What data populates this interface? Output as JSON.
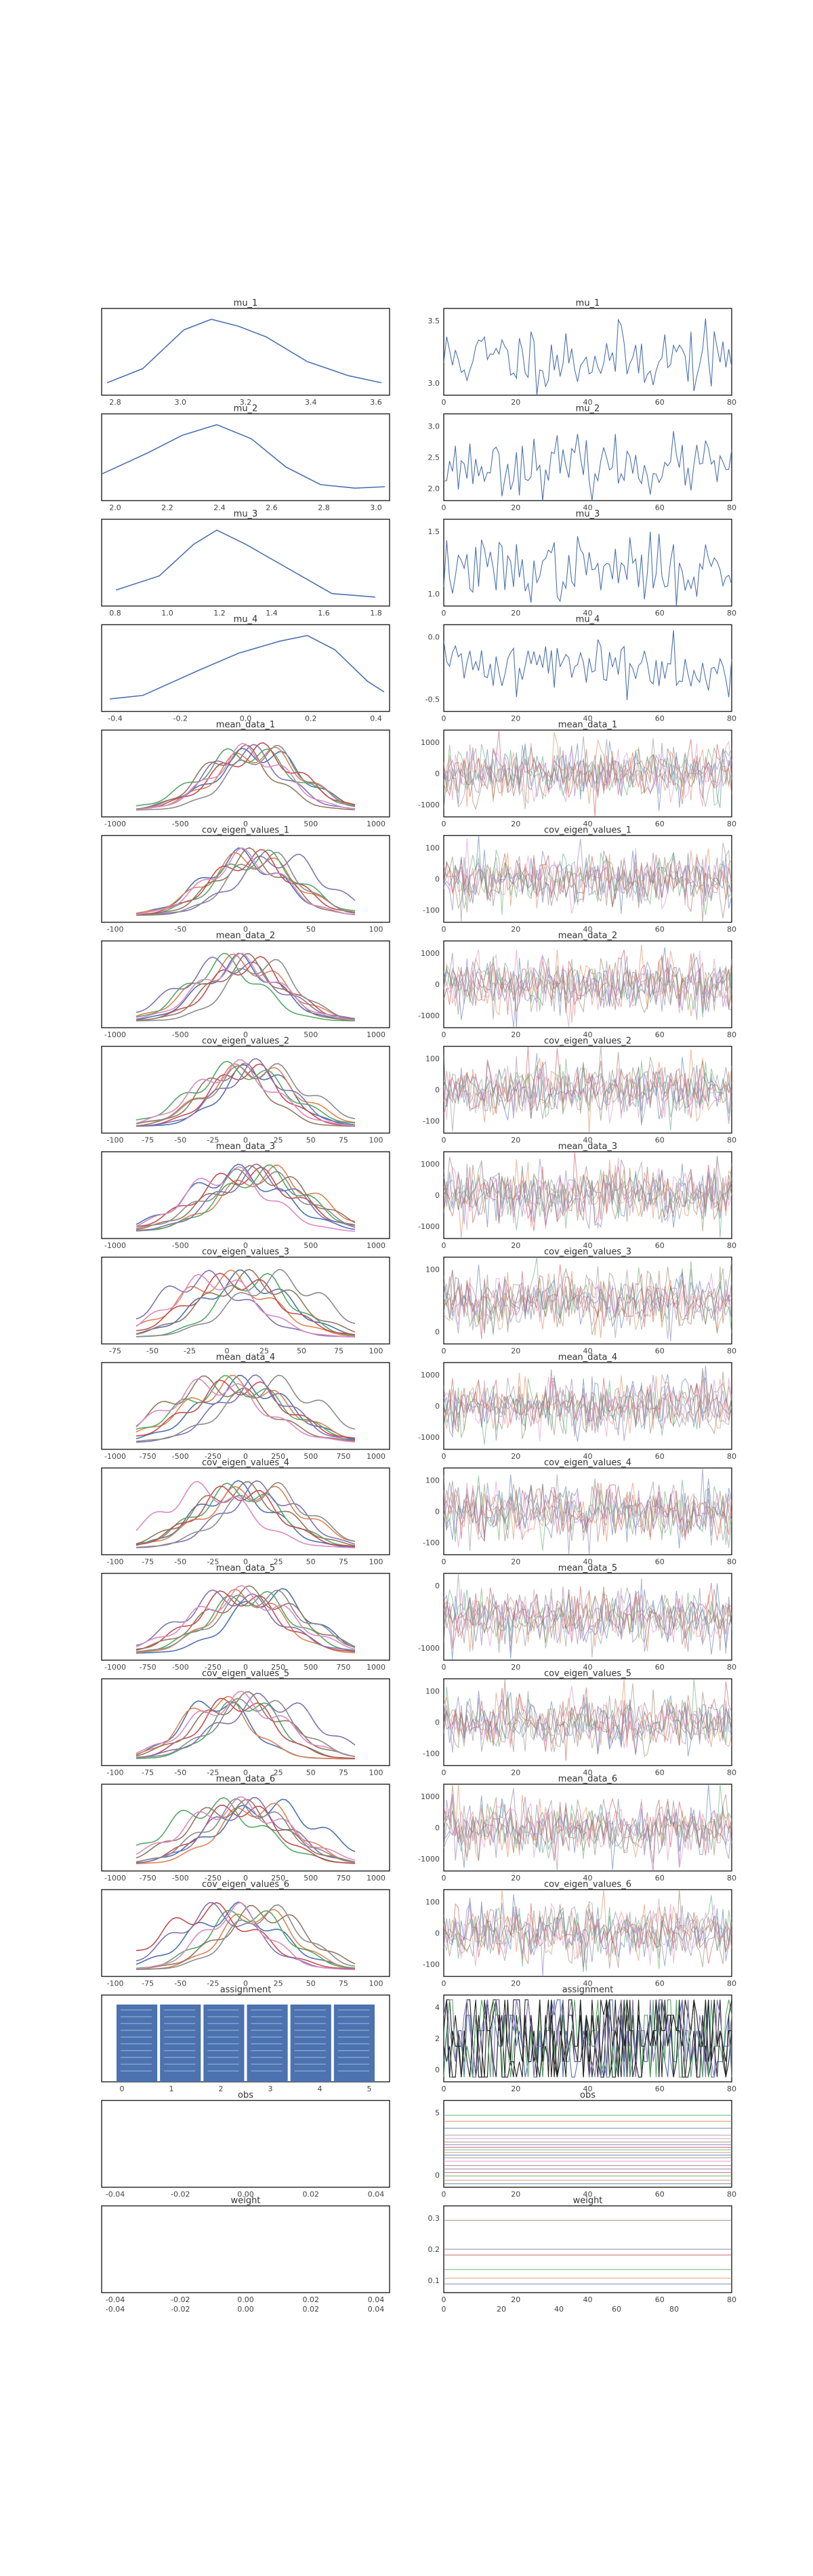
{
  "figure_title": "",
  "colors": {
    "blue": "#4c72b0",
    "orange": "#dd8452",
    "green": "#55a868",
    "red": "#c44e52",
    "purple": "#8172b3",
    "brown": "#937860",
    "pink": "#da8bc3",
    "gray": "#8c8c8c"
  },
  "chart_data": [
    {
      "type": "line",
      "subtype": "kde",
      "title": "mu_1",
      "xticks": [
        "2.8",
        "3.0",
        "3.2",
        "3.4",
        "3.6"
      ],
      "xlim": [
        2.7,
        3.75
      ],
      "series": [
        {
          "name": "mu_1",
          "x": [
            2.72,
            2.85,
            3.0,
            3.1,
            3.2,
            3.3,
            3.45,
            3.6,
            3.72
          ],
          "y": [
            0.1,
            0.3,
            0.85,
            1.0,
            0.9,
            0.75,
            0.4,
            0.2,
            0.1
          ]
        }
      ]
    },
    {
      "type": "line",
      "subtype": "trace",
      "title": "mu_1",
      "xticks": [
        "0",
        "20",
        "40",
        "60",
        "80"
      ],
      "yticks": [
        "3.0",
        "3.5"
      ],
      "ylim": [
        2.7,
        3.75
      ],
      "n_draws": 100,
      "series": [
        {
          "name": "mu_1",
          "color": "#4c72b0",
          "seed": 11,
          "mean": 3.15,
          "sd": 0.2
        }
      ]
    },
    {
      "type": "line",
      "subtype": "kde",
      "title": "mu_2",
      "xticks": [
        "2.0",
        "2.2",
        "2.4",
        "2.6",
        "2.8",
        "3.0"
      ],
      "xlim": [
        1.85,
        3.1
      ],
      "series": [
        {
          "name": "mu_2",
          "x": [
            1.85,
            2.05,
            2.2,
            2.35,
            2.5,
            2.65,
            2.8,
            2.95,
            3.08
          ],
          "y": [
            0.3,
            0.6,
            0.85,
            1.0,
            0.8,
            0.4,
            0.15,
            0.1,
            0.12
          ]
        }
      ]
    },
    {
      "type": "line",
      "subtype": "trace",
      "title": "mu_2",
      "xticks": [
        "0",
        "20",
        "40",
        "60",
        "80"
      ],
      "yticks": [
        "2.0",
        "2.5",
        "3.0"
      ],
      "ylim": [
        1.85,
        3.1
      ],
      "n_draws": 100,
      "series": [
        {
          "name": "mu_2",
          "color": "#4c72b0",
          "seed": 23,
          "mean": 2.35,
          "sd": 0.2
        }
      ]
    },
    {
      "type": "line",
      "subtype": "kde",
      "title": "mu_3",
      "xticks": [
        "0.8",
        "1.0",
        "1.2",
        "1.4",
        "1.6",
        "1.8"
      ],
      "xlim": [
        0.8,
        1.8
      ],
      "series": [
        {
          "name": "mu_3",
          "x": [
            0.85,
            1.0,
            1.12,
            1.2,
            1.3,
            1.45,
            1.6,
            1.75
          ],
          "y": [
            0.15,
            0.35,
            0.8,
            1.0,
            0.8,
            0.45,
            0.1,
            0.05
          ]
        }
      ]
    },
    {
      "type": "line",
      "subtype": "trace",
      "title": "mu_3",
      "xticks": [
        "0",
        "20",
        "40",
        "60",
        "80"
      ],
      "yticks": [
        "1.0",
        "1.5"
      ],
      "ylim": [
        0.8,
        1.8
      ],
      "n_draws": 100,
      "series": [
        {
          "name": "mu_3",
          "color": "#4c72b0",
          "seed": 37,
          "mean": 1.22,
          "sd": 0.18
        }
      ]
    },
    {
      "type": "line",
      "subtype": "kde",
      "title": "mu_4",
      "xticks": [
        "-0.4",
        "-0.2",
        "0.0",
        "0.2",
        "0.4"
      ],
      "xlim": [
        -0.55,
        0.5
      ],
      "series": [
        {
          "name": "mu_4",
          "x": [
            -0.52,
            -0.4,
            -0.2,
            -0.05,
            0.1,
            0.2,
            0.3,
            0.42,
            0.48
          ],
          "y": [
            0.1,
            0.15,
            0.5,
            0.75,
            0.92,
            1.0,
            0.8,
            0.35,
            0.2
          ]
        }
      ]
    },
    {
      "type": "line",
      "subtype": "trace",
      "title": "mu_4",
      "xticks": [
        "0",
        "20",
        "40",
        "60",
        "80"
      ],
      "yticks": [
        "-0.5",
        "0.0"
      ],
      "ylim": [
        -0.55,
        0.5
      ],
      "n_draws": 100,
      "series": [
        {
          "name": "mu_4",
          "color": "#4c72b0",
          "seed": 41,
          "mean": 0.02,
          "sd": 0.17
        }
      ]
    },
    {
      "type": "line",
      "subtype": "kde_multi",
      "title": "mean_data_1",
      "xticks": [
        "-1000",
        "-500",
        "0",
        "500",
        "1000"
      ],
      "xlim": [
        -1200,
        1200
      ],
      "n_chains": 8,
      "mean": 0,
      "sd": 350
    },
    {
      "type": "line",
      "subtype": "trace_multi",
      "title": "mean_data_1",
      "xticks": [
        "0",
        "20",
        "40",
        "60",
        "80"
      ],
      "yticks": [
        "-1000",
        "0",
        "1000"
      ],
      "ylim": [
        -1150,
        1150
      ],
      "n_chains": 8,
      "n_draws": 100,
      "mean": 0,
      "sd": 380
    },
    {
      "type": "line",
      "subtype": "kde_multi",
      "title": "cov_eigen_values_1",
      "xticks": [
        "-100",
        "-50",
        "0",
        "50",
        "100"
      ],
      "xlim": [
        -110,
        110
      ],
      "n_chains": 8,
      "mean": 0,
      "sd": 32
    },
    {
      "type": "line",
      "subtype": "trace_multi",
      "title": "cov_eigen_values_1",
      "xticks": [
        "0",
        "20",
        "40",
        "60",
        "80"
      ],
      "yticks": [
        "-100",
        "0",
        "100"
      ],
      "ylim": [
        -110,
        110
      ],
      "n_chains": 8,
      "n_draws": 100,
      "mean": 0,
      "sd": 36
    },
    {
      "type": "line",
      "subtype": "kde_multi",
      "title": "mean_data_2",
      "xticks": [
        "-1000",
        "-500",
        "0",
        "500",
        "1000"
      ],
      "xlim": [
        -1200,
        1200
      ],
      "n_chains": 8,
      "mean": 0,
      "sd": 350
    },
    {
      "type": "line",
      "subtype": "trace_multi",
      "title": "mean_data_2",
      "xticks": [
        "0",
        "20",
        "40",
        "60",
        "80"
      ],
      "yticks": [
        "-1000",
        "0",
        "1000"
      ],
      "ylim": [
        -1150,
        1150
      ],
      "n_chains": 8,
      "n_draws": 100,
      "mean": 0,
      "sd": 380
    },
    {
      "type": "line",
      "subtype": "kde_multi",
      "title": "cov_eigen_values_2",
      "xticks": [
        "-100",
        "-75",
        "-50",
        "-25",
        "0",
        "25",
        "50",
        "75",
        "100"
      ],
      "xlim": [
        -105,
        105
      ],
      "n_chains": 8,
      "mean": 0,
      "sd": 30
    },
    {
      "type": "line",
      "subtype": "trace_multi",
      "title": "cov_eigen_values_2",
      "xticks": [
        "0",
        "20",
        "40",
        "60",
        "80"
      ],
      "yticks": [
        "-100",
        "0",
        "100"
      ],
      "ylim": [
        -110,
        110
      ],
      "n_chains": 8,
      "n_draws": 100,
      "mean": 0,
      "sd": 36
    },
    {
      "type": "line",
      "subtype": "kde_multi",
      "title": "mean_data_3",
      "xticks": [
        "-1000",
        "-500",
        "0",
        "500",
        "1000"
      ],
      "xlim": [
        -1200,
        1200
      ],
      "n_chains": 8,
      "mean": 0,
      "sd": 350
    },
    {
      "type": "line",
      "subtype": "trace_multi",
      "title": "mean_data_3",
      "xticks": [
        "0",
        "20",
        "40",
        "60",
        "80"
      ],
      "yticks": [
        "-1000",
        "0",
        "1000"
      ],
      "ylim": [
        -1150,
        1150
      ],
      "n_chains": 8,
      "n_draws": 100,
      "mean": 0,
      "sd": 380
    },
    {
      "type": "line",
      "subtype": "kde_multi",
      "title": "cov_eigen_values_3",
      "xticks": [
        "-75",
        "-50",
        "-25",
        "0",
        "25",
        "50",
        "75",
        "100"
      ],
      "xlim": [
        -100,
        110
      ],
      "n_chains": 8,
      "mean": 0,
      "sd": 30
    },
    {
      "type": "line",
      "subtype": "trace_multi",
      "title": "cov_eigen_values_3",
      "xticks": [
        "0",
        "20",
        "40",
        "60",
        "80"
      ],
      "yticks": [
        "0",
        "100"
      ],
      "ylim": [
        -110,
        110
      ],
      "n_chains": 8,
      "n_draws": 100,
      "mean": 0,
      "sd": 36
    },
    {
      "type": "line",
      "subtype": "kde_multi",
      "title": "mean_data_4",
      "xticks": [
        "-1000",
        "-750",
        "-500",
        "-250",
        "0",
        "250",
        "500",
        "750",
        "1000"
      ],
      "xlim": [
        -1050,
        1050
      ],
      "n_chains": 8,
      "mean": 0,
      "sd": 330
    },
    {
      "type": "line",
      "subtype": "trace_multi",
      "title": "mean_data_4",
      "xticks": [
        "0",
        "20",
        "40",
        "60",
        "80"
      ],
      "yticks": [
        "-1000",
        "0",
        "1000"
      ],
      "ylim": [
        -1150,
        1150
      ],
      "n_chains": 8,
      "n_draws": 100,
      "mean": 0,
      "sd": 380
    },
    {
      "type": "line",
      "subtype": "kde_multi",
      "title": "cov_eigen_values_4",
      "xticks": [
        "-100",
        "-75",
        "-50",
        "-25",
        "0",
        "25",
        "50",
        "75",
        "100"
      ],
      "xlim": [
        -105,
        105
      ],
      "n_chains": 8,
      "mean": 0,
      "sd": 30
    },
    {
      "type": "line",
      "subtype": "trace_multi",
      "title": "cov_eigen_values_4",
      "xticks": [
        "0",
        "20",
        "40",
        "60",
        "80"
      ],
      "yticks": [
        "-100",
        "0",
        "100"
      ],
      "ylim": [
        -110,
        110
      ],
      "n_chains": 8,
      "n_draws": 100,
      "mean": 0,
      "sd": 36
    },
    {
      "type": "line",
      "subtype": "kde_multi",
      "title": "mean_data_5",
      "xticks": [
        "-1000",
        "-750",
        "-500",
        "-250",
        "0",
        "250",
        "500",
        "750",
        "1000"
      ],
      "xlim": [
        -1050,
        1050
      ],
      "n_chains": 8,
      "mean": 0,
      "sd": 330
    },
    {
      "type": "line",
      "subtype": "trace_multi",
      "title": "mean_data_5",
      "xticks": [
        "0",
        "20",
        "40",
        "60",
        "80"
      ],
      "yticks": [
        "-1000",
        "0"
      ],
      "ylim": [
        -1150,
        1150
      ],
      "n_chains": 8,
      "n_draws": 100,
      "mean": 0,
      "sd": 380
    },
    {
      "type": "line",
      "subtype": "kde_multi",
      "title": "cov_eigen_values_5",
      "xticks": [
        "-100",
        "-75",
        "-50",
        "-25",
        "0",
        "25",
        "50",
        "75",
        "100"
      ],
      "xlim": [
        -105,
        105
      ],
      "n_chains": 8,
      "mean": 0,
      "sd": 30
    },
    {
      "type": "line",
      "subtype": "trace_multi",
      "title": "cov_eigen_values_5",
      "xticks": [
        "0",
        "20",
        "40",
        "60",
        "80"
      ],
      "yticks": [
        "-100",
        "0",
        "100"
      ],
      "ylim": [
        -110,
        110
      ],
      "n_chains": 8,
      "n_draws": 100,
      "mean": 0,
      "sd": 36
    },
    {
      "type": "line",
      "subtype": "kde_multi",
      "title": "mean_data_6",
      "xticks": [
        "-1000",
        "-750",
        "-500",
        "-250",
        "0",
        "250",
        "500",
        "750",
        "1000"
      ],
      "xlim": [
        -1050,
        1050
      ],
      "n_chains": 8,
      "mean": 0,
      "sd": 330
    },
    {
      "type": "line",
      "subtype": "trace_multi",
      "title": "mean_data_6",
      "xticks": [
        "0",
        "20",
        "40",
        "60",
        "80"
      ],
      "yticks": [
        "-1000",
        "0",
        "1000"
      ],
      "ylim": [
        -1150,
        1150
      ],
      "n_chains": 8,
      "n_draws": 100,
      "mean": 0,
      "sd": 380
    },
    {
      "type": "line",
      "subtype": "kde_multi",
      "title": "cov_eigen_values_6",
      "xticks": [
        "-100",
        "-75",
        "-50",
        "-25",
        "0",
        "25",
        "50",
        "75",
        "100"
      ],
      "xlim": [
        -105,
        105
      ],
      "n_chains": 8,
      "mean": 0,
      "sd": 30
    },
    {
      "type": "line",
      "subtype": "trace_multi",
      "title": "cov_eigen_values_6",
      "xticks": [
        "0",
        "20",
        "40",
        "60",
        "80"
      ],
      "yticks": [
        "-100",
        "0",
        "100"
      ],
      "ylim": [
        -110,
        110
      ],
      "n_chains": 8,
      "n_draws": 100,
      "mean": 0,
      "sd": 36
    },
    {
      "type": "bar",
      "subtype": "hist_discrete",
      "title": "assignment",
      "categories": [
        "0",
        "1",
        "2",
        "3",
        "4",
        "5"
      ],
      "xticks": [
        "0",
        "1",
        "2",
        "3",
        "4",
        "5"
      ],
      "values": [
        1,
        1,
        1,
        1,
        1,
        1
      ]
    },
    {
      "type": "line",
      "subtype": "trace_discrete",
      "title": "assignment",
      "xticks": [
        "0",
        "20",
        "40",
        "60",
        "80"
      ],
      "yticks": [
        "0",
        "2",
        "4"
      ],
      "ylim": [
        -0.3,
        5.3
      ],
      "n_draws": 100,
      "levels": [
        0,
        1,
        2,
        3,
        4,
        5
      ]
    },
    {
      "type": "empty",
      "title": "obs",
      "xticks": [
        "-0.04",
        "-0.02",
        "0.00",
        "0.02",
        "0.04"
      ],
      "xlim": [
        -0.05,
        0.05
      ]
    },
    {
      "type": "line",
      "subtype": "trace_constant",
      "title": "obs",
      "xticks": [
        "0",
        "20",
        "40",
        "60",
        "80"
      ],
      "yticks": [
        "0",
        "5"
      ],
      "ylim": [
        -3,
        7
      ],
      "n_draws": 100,
      "levels": [
        -2.6,
        -2.2,
        -1.7,
        -1.3,
        -0.9,
        -0.5,
        0.0,
        0.4,
        0.7,
        1.0,
        1.3,
        1.6,
        1.9,
        2.2,
        2.6,
        3.0,
        3.8,
        4.6,
        5.3
      ]
    },
    {
      "type": "empty",
      "title": "weight",
      "xticks": [
        "-0.04",
        "-0.02",
        "0.00",
        "0.02",
        "0.04"
      ],
      "xlim": [
        -0.05,
        0.05
      ]
    },
    {
      "type": "line",
      "subtype": "trace_constant",
      "title": "weight",
      "xticks": [
        "0",
        "20",
        "40",
        "60",
        "80"
      ],
      "yticks": [
        "0.1",
        "0.2",
        "0.3"
      ],
      "ylim": [
        0.05,
        0.35
      ],
      "n_draws": 100,
      "levels": [
        0.08,
        0.1,
        0.13,
        0.18,
        0.2,
        0.3
      ]
    }
  ]
}
